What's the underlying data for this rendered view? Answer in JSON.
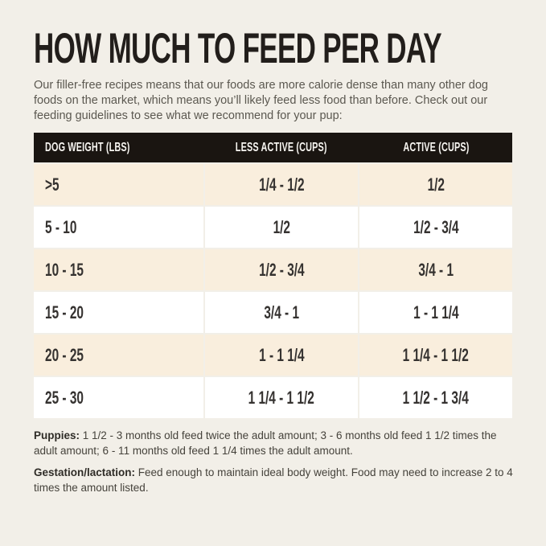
{
  "page": {
    "title": "HOW MUCH TO FEED PER DAY",
    "intro": "Our filler-free recipes means that our foods are more calorie dense than many other dog foods on the market, which means you’ll likely feed less food than before. Check out our feeding guidelines to see what we recommend for your pup:"
  },
  "table": {
    "columns": [
      "DOG WEIGHT (LBS)",
      "LESS ACTIVE (CUPS)",
      "ACTIVE (CUPS)"
    ],
    "rows": [
      {
        "weight": ">5",
        "less_active": "1/4 - 1/2",
        "active": "1/2"
      },
      {
        "weight": "5 - 10",
        "less_active": "1/2",
        "active": "1/2 - 3/4"
      },
      {
        "weight": "10 - 15",
        "less_active": "1/2 - 3/4",
        "active": "3/4 - 1"
      },
      {
        "weight": "15 - 20",
        "less_active": "3/4 - 1",
        "active": "1 - 1 1/4"
      },
      {
        "weight": "20 - 25",
        "less_active": "1 - 1 1/4",
        "active": "1 1/4 - 1 1/2"
      },
      {
        "weight": "25 - 30",
        "less_active": "1 1/4 - 1 1/2",
        "active": "1 1/2 - 1 3/4"
      }
    ]
  },
  "notes": [
    {
      "label": "Puppies:",
      "text": " 1 1/2 - 3 months old feed twice the adult amount; 3 - 6 months old feed 1 1/2 times the adult amount; 6 - 11 months old feed 1 1/4 times the adult amount."
    },
    {
      "label": "Gestation/lactation:",
      "text": " Feed enough to maintain ideal body weight. Food may need to increase 2 to 4 times the amount listed."
    }
  ],
  "colors": {
    "page_background": "#f2efe8",
    "row_stripe": "#f9eedd",
    "row_white": "#ffffff",
    "header_background": "#1a1511",
    "header_text": "#f7f5f1",
    "title_text": "#221e1b",
    "body_text": "#5b5850"
  }
}
